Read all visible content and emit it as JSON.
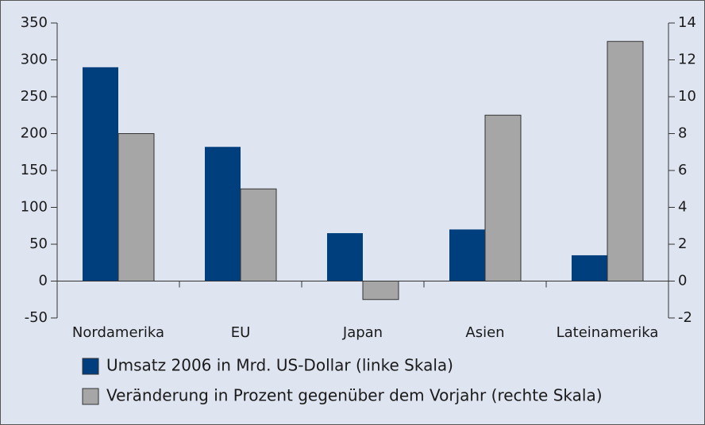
{
  "chart_data": {
    "type": "bar",
    "categories": [
      "Nordamerika",
      "EU",
      "Japan",
      "Asien",
      "Lateinamerika"
    ],
    "series": [
      {
        "name": "Umsatz 2006 in Mrd. US-Dollar (linke Skala)",
        "color": "#003f7d",
        "values": [
          290,
          182,
          65,
          70,
          35
        ]
      },
      {
        "name": "Veränderung in Prozent gegenüber dem Vorjahr (rechte Skala)",
        "color": "#a6a6a6",
        "axis": "y2",
        "values": [
          8,
          5,
          -1,
          9,
          13
        ]
      }
    ],
    "ylim": [
      -50,
      350
    ],
    "yticks": [
      -50,
      0,
      50,
      100,
      150,
      200,
      250,
      300,
      350
    ],
    "y2lim": [
      -2,
      14
    ],
    "y2ticks": [
      -2,
      0,
      2,
      4,
      6,
      8,
      10,
      12,
      14
    ],
    "legend": "bottom"
  }
}
